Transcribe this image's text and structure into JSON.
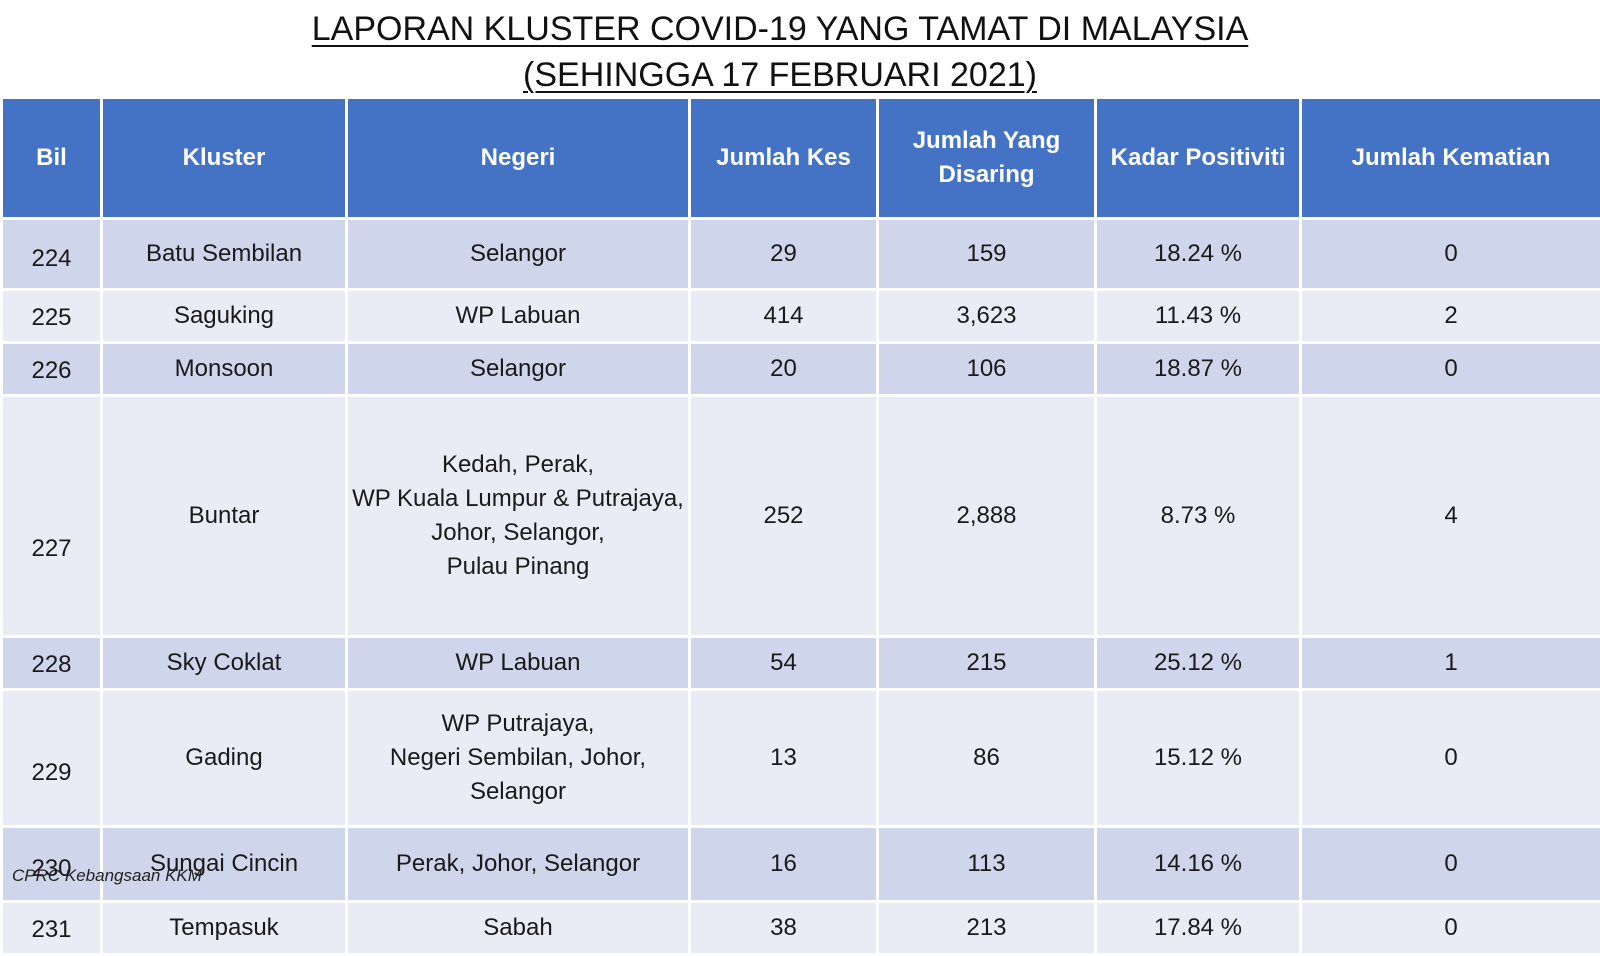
{
  "title": {
    "line1": "LAPORAN KLUSTER COVID-19 YANG TAMAT DI MALAYSIA",
    "line2": "(SEHINGGA 17 FEBRUARI 2021)"
  },
  "table": {
    "header_color": "#4472c4",
    "row_colors": [
      "#cfd5ea",
      "#e9ebf5"
    ],
    "headers": {
      "bil": "Bil",
      "kluster": "Kluster",
      "negeri": "Negeri",
      "jumlah_kes": "Jumlah Kes",
      "jumlah_disaring": "Jumlah Yang Disaring",
      "kadar_positiviti": "Kadar Positiviti",
      "jumlah_kematian": "Jumlah Kematian"
    },
    "rows": [
      {
        "bil": "224",
        "kluster": "Batu Sembilan",
        "negeri": [
          "Selangor"
        ],
        "jumlah_kes": "29",
        "jumlah_disaring": "159",
        "kadar_positiviti": "18.24 %",
        "jumlah_kematian": "0"
      },
      {
        "bil": "225",
        "kluster": "Saguking",
        "negeri": [
          "WP Labuan"
        ],
        "jumlah_kes": "414",
        "jumlah_disaring": "3,623",
        "kadar_positiviti": "11.43 %",
        "jumlah_kematian": "2"
      },
      {
        "bil": "226",
        "kluster": "Monsoon",
        "negeri": [
          "Selangor"
        ],
        "jumlah_kes": "20",
        "jumlah_disaring": "106",
        "kadar_positiviti": "18.87 %",
        "jumlah_kematian": "0"
      },
      {
        "bil": "227",
        "kluster": "Buntar",
        "negeri": [
          "Kedah, Perak,",
          "WP Kuala Lumpur & Putrajaya,",
          "Johor, Selangor,",
          "Pulau Pinang"
        ],
        "jumlah_kes": "252",
        "jumlah_disaring": "2,888",
        "kadar_positiviti": "8.73 %",
        "jumlah_kematian": "4"
      },
      {
        "bil": "228",
        "kluster": "Sky Coklat",
        "negeri": [
          "WP Labuan"
        ],
        "jumlah_kes": "54",
        "jumlah_disaring": "215",
        "kadar_positiviti": "25.12 %",
        "jumlah_kematian": "1"
      },
      {
        "bil": "229",
        "kluster": "Gading",
        "negeri": [
          "WP Putrajaya,",
          "Negeri Sembilan, Johor,",
          "Selangor"
        ],
        "jumlah_kes": "13",
        "jumlah_disaring": "86",
        "kadar_positiviti": "15.12 %",
        "jumlah_kematian": "0"
      },
      {
        "bil": "230",
        "kluster": "Sungai Cincin",
        "negeri": [
          "Perak, Johor, Selangor"
        ],
        "jumlah_kes": "16",
        "jumlah_disaring": "113",
        "kadar_positiviti": "14.16 %",
        "jumlah_kematian": "0"
      },
      {
        "bil": "231",
        "kluster": "Tempasuk",
        "negeri": [
          "Sabah"
        ],
        "jumlah_kes": "38",
        "jumlah_disaring": "213",
        "kadar_positiviti": "17.84 %",
        "jumlah_kematian": "0"
      }
    ]
  },
  "footer": {
    "source": "CPRC Kebangsaan KKM"
  }
}
